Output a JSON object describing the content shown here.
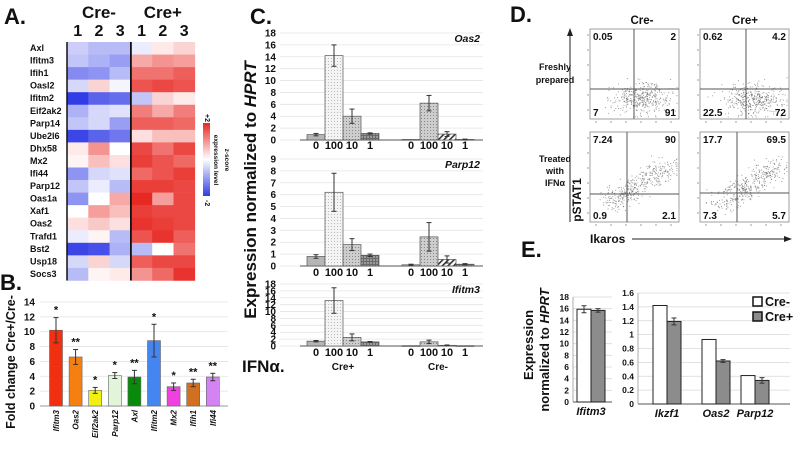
{
  "figure_labels": {
    "A": "A.",
    "B": "B.",
    "C": "C.",
    "D": "D.",
    "E": "E."
  },
  "chart_data": [
    {
      "panel": "A",
      "type": "heatmap",
      "column_groups": [
        "Cre-",
        "Cre+"
      ],
      "columns": [
        "1",
        "2",
        "3",
        "1",
        "2",
        "3"
      ],
      "rows": [
        "Axl",
        "Ifitm3",
        "Ifih1",
        "Oasl2",
        "Ifitm2",
        "Eif2ak2",
        "Parp14",
        "Ube2l6",
        "Dhx58",
        "Mx2",
        "Ifi44",
        "Parp12",
        "Oas1a",
        "Xaf1",
        "Oas2",
        "Trafd1",
        "Bst2",
        "Usp18",
        "Socs3"
      ],
      "values": [
        [
          -0.5,
          -0.7,
          -0.7,
          -0.2,
          0.2,
          0.4
        ],
        [
          -0.6,
          -0.8,
          -1.0,
          0.8,
          1.0,
          0.9
        ],
        [
          -1.2,
          -1.1,
          -0.7,
          1.3,
          1.3,
          1.5
        ],
        [
          -0.4,
          0.4,
          -0.1,
          1.6,
          1.7,
          1.6
        ],
        [
          -2.0,
          -1.6,
          -1.5,
          -0.6,
          0.4,
          0.2
        ],
        [
          -0.8,
          -0.4,
          -0.3,
          1.2,
          0.8,
          1.2
        ],
        [
          -0.6,
          -0.4,
          -1.0,
          1.5,
          1.5,
          1.4
        ],
        [
          -1.9,
          -1.6,
          -1.4,
          0.3,
          0.6,
          0.6
        ],
        [
          0.2,
          1.0,
          0.0,
          1.7,
          1.3,
          1.7
        ],
        [
          0.1,
          0.6,
          0.3,
          1.8,
          1.6,
          1.4
        ],
        [
          -1.1,
          -0.4,
          -0.3,
          1.4,
          1.6,
          1.8
        ],
        [
          -0.6,
          -0.2,
          -0.7,
          1.8,
          1.8,
          1.7
        ],
        [
          -1.1,
          0.0,
          0.8,
          2.0,
          0.9,
          1.7
        ],
        [
          0.0,
          0.9,
          0.6,
          1.8,
          1.7,
          1.7
        ],
        [
          0.3,
          0.5,
          0.3,
          1.9,
          1.8,
          1.7
        ],
        [
          -0.2,
          0.1,
          -0.7,
          1.6,
          1.9,
          1.5
        ],
        [
          -1.9,
          -1.8,
          -0.8,
          -0.7,
          0.0,
          1.3
        ],
        [
          -0.4,
          0.4,
          -0.4,
          1.5,
          1.7,
          1.7
        ],
        [
          -0.7,
          0.1,
          0.2,
          1.0,
          1.4,
          1.9
        ]
      ],
      "colorbar": {
        "range": [
          -2,
          2
        ],
        "min_label": "-2",
        "max_label": "+2",
        "title": "expression level",
        "subtitle": "z-score",
        "low_color": "#323ce6",
        "high_color": "#e82823"
      }
    },
    {
      "panel": "B",
      "type": "bar",
      "ylabel": "Fold change Cre+/Cre-",
      "ylim": [
        0,
        14
      ],
      "yticks": [
        0,
        2,
        4,
        6,
        8,
        10,
        12,
        14
      ],
      "categories": [
        "Ifitm3",
        "Oas2",
        "Eif2ak2",
        "Parp12",
        "Axl",
        "Ifitm2",
        "Mx2",
        "Ifih1",
        "Ifi44"
      ],
      "values": [
        10.2,
        6.6,
        2.1,
        4.1,
        3.9,
        8.8,
        2.6,
        3.1,
        3.9
      ],
      "errors": [
        1.7,
        1.0,
        0.4,
        0.4,
        0.9,
        2.2,
        0.5,
        0.5,
        0.5
      ],
      "significance": [
        "*",
        "**",
        "*",
        "*",
        "**",
        "*",
        "*",
        "**",
        "**"
      ],
      "colors": [
        "#f03010",
        "#f57f10",
        "#f2f010",
        "#e2f5da",
        "#0a8a0a",
        "#4585f0",
        "#f040e0",
        "#d07020",
        "#d484f2"
      ]
    },
    {
      "panel": "C",
      "type": "bar",
      "ylabel_prefix": "Expression normalized to ",
      "ylabel_italic": "HPRT",
      "treatment_label": "IFNα.",
      "groups": [
        "Cre+",
        "Cre-"
      ],
      "categories": [
        "0",
        "100",
        "10",
        "1"
      ],
      "subplots": [
        {
          "gene": "Oas2",
          "ylim": [
            0,
            18
          ],
          "yticks": [
            0,
            2,
            4,
            6,
            8,
            10,
            12,
            14,
            16,
            18
          ],
          "values": [
            [
              0.9,
              14.2,
              4.0,
              1.1
            ],
            [
              0.1,
              6.2,
              1.0,
              0.1
            ]
          ],
          "errors": [
            [
              0.2,
              1.8,
              1.2,
              0.1
            ],
            [
              0.0,
              1.3,
              0.4,
              0.05
            ]
          ]
        },
        {
          "gene": "Parp12",
          "ylim": [
            0,
            9
          ],
          "yticks": [
            0,
            1,
            2,
            3,
            4,
            5,
            6,
            7,
            8,
            9
          ],
          "values": [
            [
              0.8,
              6.2,
              1.8,
              0.9
            ],
            [
              0.1,
              2.45,
              0.55,
              0.15
            ]
          ],
          "errors": [
            [
              0.15,
              1.6,
              0.5,
              0.1
            ],
            [
              0.05,
              1.2,
              0.3,
              0.05
            ]
          ]
        },
        {
          "gene": "Ifitm3",
          "ylim": [
            0,
            18
          ],
          "yticks": [
            0,
            2,
            4,
            6,
            8,
            10,
            12,
            14,
            16,
            18
          ],
          "values": [
            [
              1.4,
              13.2,
              2.5,
              1.2
            ],
            [
              0.1,
              1.2,
              0.2,
              0.1
            ]
          ],
          "errors": [
            [
              0.2,
              3.7,
              1.0,
              0.1
            ],
            [
              0.0,
              0.5,
              0.1,
              0.0
            ]
          ]
        }
      ]
    },
    {
      "panel": "D",
      "type": "scatter",
      "columns": [
        "Cre-",
        "Cre+"
      ],
      "rows": [
        "Freshly prepared",
        "Treated with IFNα"
      ],
      "row_lines": [
        [
          "Freshly",
          "prepared"
        ],
        [
          "Treated",
          "with",
          "IFNα"
        ]
      ],
      "xlabel": "Ikaros",
      "ylabel": "pSTAT1",
      "quadrants": [
        [
          {
            "ul": "0.05",
            "ur": "2",
            "ll": "7",
            "lr": "91"
          },
          {
            "ul": "0.62",
            "ur": "4.2",
            "ll": "22.5",
            "lr": "72"
          }
        ],
        [
          {
            "ul": "7.24",
            "ur": "90",
            "ll": "0.9",
            "lr": "2.1"
          },
          {
            "ul": "17.7",
            "ur": "69.5",
            "ll": "7.3",
            "lr": "5.7"
          }
        ]
      ]
    },
    {
      "panel": "E",
      "type": "bar",
      "ylabel_line1": "Expression",
      "ylabel_line2_prefix": "normalized  to ",
      "ylabel_line2_italic": "HPRT",
      "legend": [
        {
          "label": "Cre-",
          "color": "#ffffff"
        },
        {
          "label": "Cre+",
          "color": "#8c8c8c"
        }
      ],
      "left": {
        "ylim": [
          0,
          18
        ],
        "yticks": [
          "0",
          "2",
          "4",
          "6",
          "8",
          "10",
          "12",
          "14",
          "16",
          "18"
        ],
        "categories": [
          "Ifitm3"
        ],
        "values": [
          [
            15.9,
            15.7
          ]
        ],
        "errors": [
          [
            0.6,
            0.3
          ]
        ]
      },
      "right": {
        "ylim": [
          0,
          1.6
        ],
        "yticks": [
          "0",
          "0.2",
          "0.4",
          "0.6",
          "0.8",
          "1",
          "1.2",
          "1.4",
          "1.6"
        ],
        "categories": [
          "Ikzf1",
          "Oas2",
          "Parp12"
        ],
        "values": [
          [
            1.42,
            1.19
          ],
          [
            0.93,
            0.62
          ],
          [
            0.41,
            0.34
          ]
        ],
        "errors": [
          [
            0.0,
            0.05
          ],
          [
            0.0,
            0.02
          ],
          [
            0.0,
            0.04
          ]
        ]
      }
    }
  ]
}
